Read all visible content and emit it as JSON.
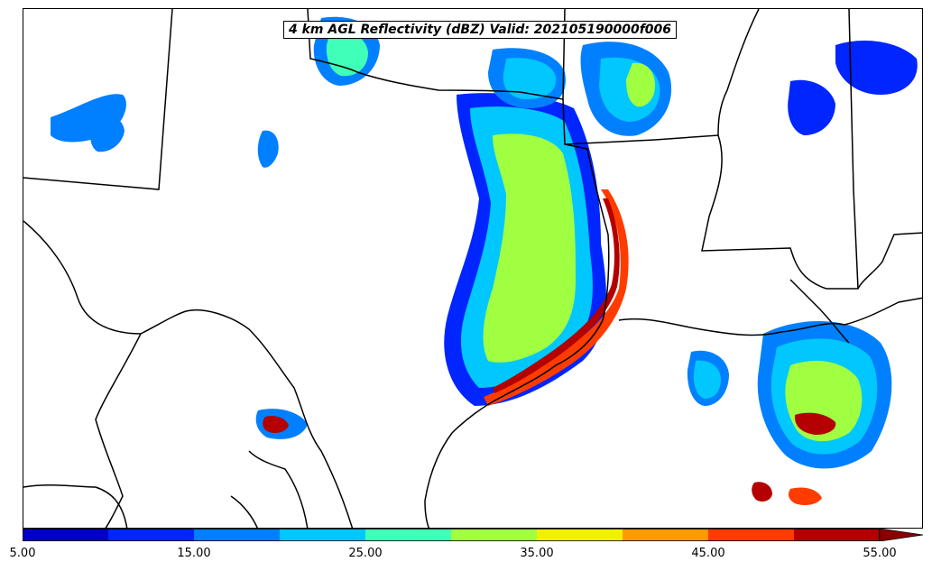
{
  "title": "4 km AGL Reflectivity (dBZ) Valid: 202105190000f006",
  "colorbar": {
    "levels": [
      5,
      10,
      15,
      20,
      25,
      30,
      35,
      40,
      45,
      50,
      55
    ],
    "colors": [
      "#0000c8",
      "#0025ff",
      "#0080ff",
      "#00c8ff",
      "#40ffb8",
      "#a0ff40",
      "#f0f000",
      "#ff9a00",
      "#ff3c00",
      "#b40000"
    ],
    "extend_color": "#8b0000",
    "extend": "max",
    "tick_labels": [
      "5.00",
      "15.00",
      "25.00",
      "35.00",
      "45.00",
      "55.00"
    ]
  },
  "legend_colors": {
    "ocean_boundary": "#000000",
    "state_lines": "#000000"
  }
}
